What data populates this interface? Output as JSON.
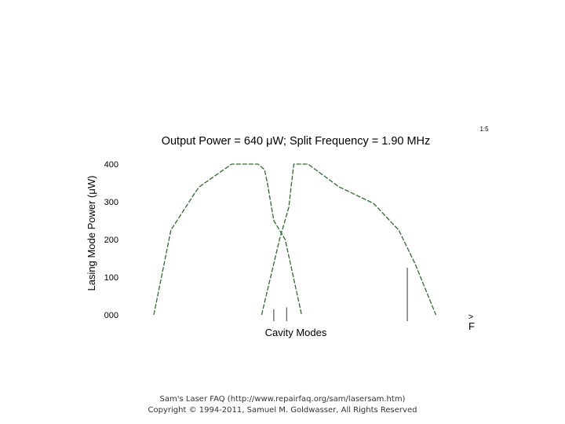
{
  "chart_data": {
    "type": "line",
    "title": "Output Power = 640 μW; Split Frequency = 1.90 MHz",
    "slide_number": "1:5",
    "xlabel": "Cavity Modes",
    "ylabel": "Lasing Mode Power (μW)",
    "ylim": [
      0,
      400
    ],
    "yticks": [
      {
        "value": 400,
        "label": "400"
      },
      {
        "value": 300,
        "label": "300"
      },
      {
        "value": 200,
        "label": "200"
      },
      {
        "value": 100,
        "label": "100"
      },
      {
        "value": 0,
        "label": "000"
      }
    ],
    "grid": false,
    "line_color": "#2e6b2e",
    "series": [
      {
        "x": [
          0,
          0.24,
          0.58,
          0.64,
          1.09,
          1.46,
          1.55,
          1.59,
          1.68,
          1.84,
          2.07
        ],
        "y": [
          0,
          225,
          325,
          340,
          400,
          400,
          385,
          350,
          250,
          200,
          0
        ]
      },
      {
        "x": [
          1.51,
          1.76,
          1.89,
          1.92,
          1.96,
          2.16,
          2.59,
          3.03,
          3.08,
          3.43,
          3.66,
          3.95
        ],
        "y": [
          0,
          200,
          285,
          335,
          400,
          400,
          340,
          300,
          295,
          225,
          135,
          0
        ]
      }
    ],
    "markers": [
      {
        "x": 1.68,
        "y": 15
      },
      {
        "x": 1.86,
        "y": 20
      },
      {
        "x": 3.55,
        "y": 125
      }
    ],
    "corner_labels": {
      "arrow": ">",
      "letter": "F"
    }
  },
  "footer": {
    "line1": "Sam's Laser FAQ (http://www.repairfaq.org/sam/lasersam.htm)",
    "line2": "Copyright © 1994-2011, Samuel M. Goldwasser, All Rights Reserved"
  }
}
